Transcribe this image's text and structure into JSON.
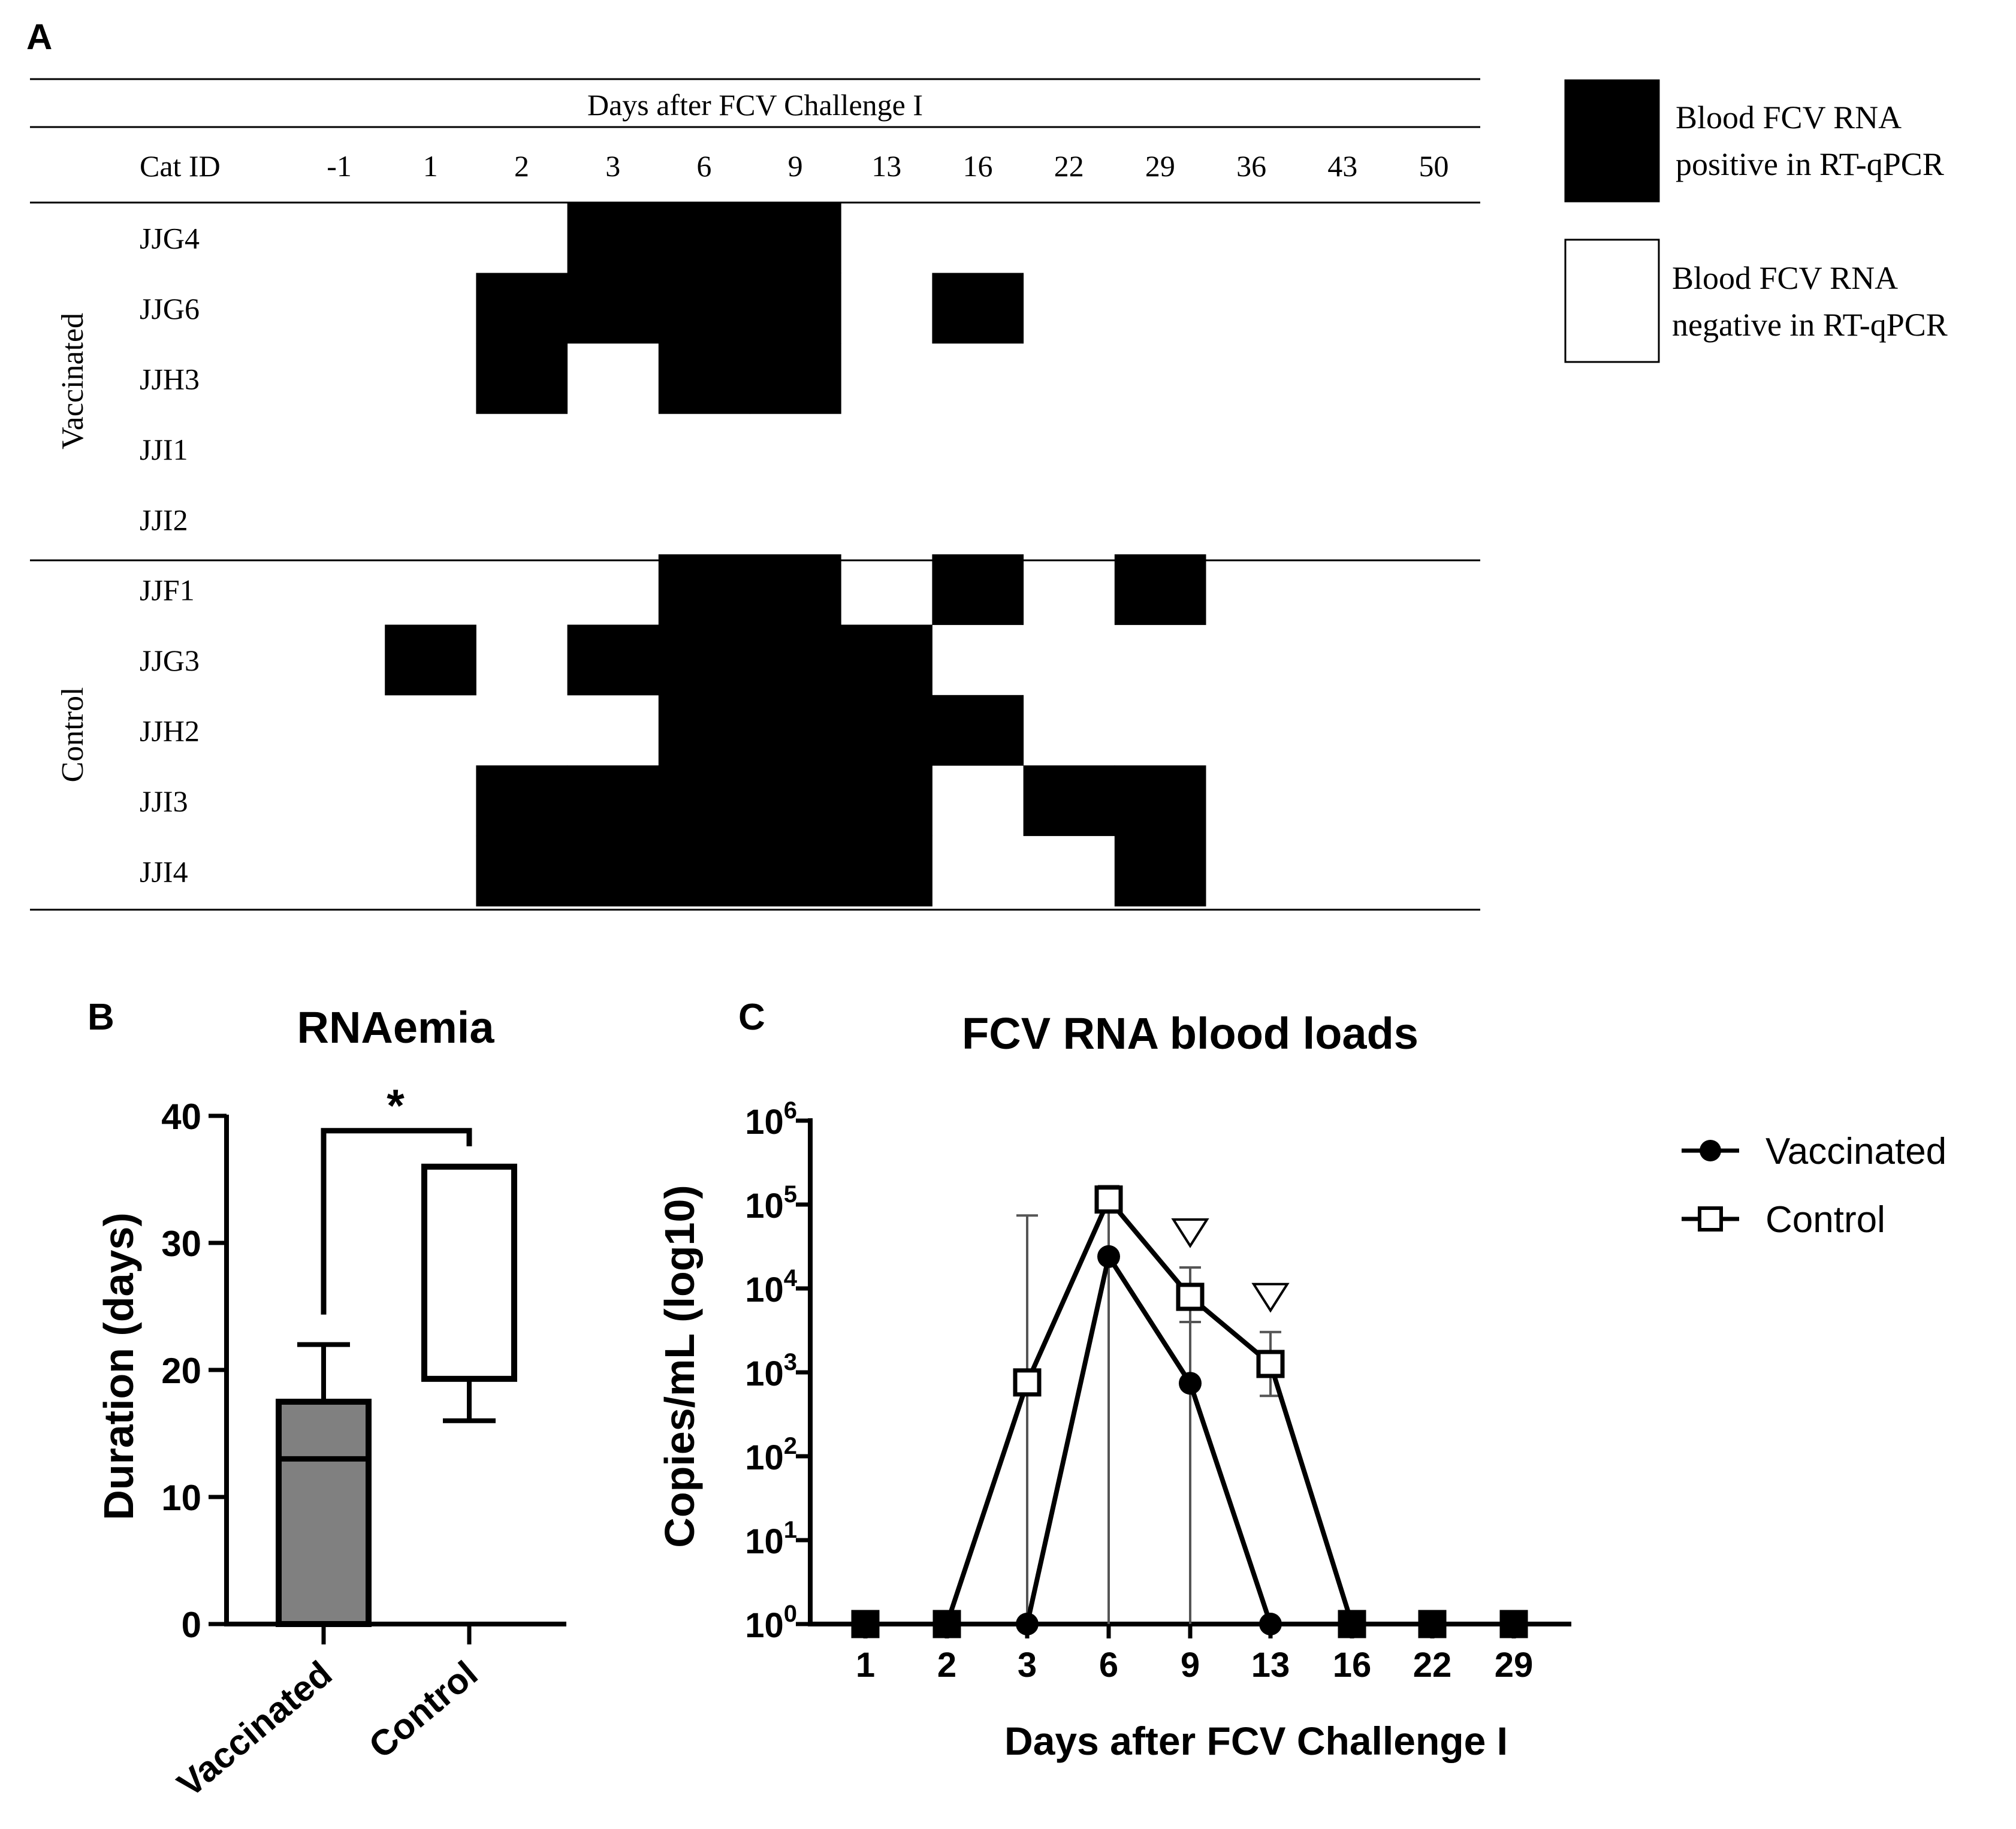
{
  "panels": {
    "a": "A",
    "b": "B",
    "c": "C"
  },
  "colors": {
    "positive": "#000000",
    "negative": "#ffffff",
    "box_vaccinated": "#808080",
    "box_control": "#ffffff"
  },
  "chart_data": [
    {
      "type": "table",
      "panel": "A",
      "header_title": "Days after FCV Challenge I",
      "id_header": "Cat ID",
      "days": [
        "-1",
        "1",
        "2",
        "3",
        "6",
        "9",
        "13",
        "16",
        "22",
        "29",
        "36",
        "43",
        "50"
      ],
      "groups": [
        {
          "name": "Vaccinated",
          "cats": [
            {
              "id": "JJG4",
              "positive": [
                0,
                0,
                0,
                1,
                1,
                1,
                0,
                0,
                0,
                0,
                0,
                0,
                0
              ]
            },
            {
              "id": "JJG6",
              "positive": [
                0,
                0,
                1,
                1,
                1,
                1,
                0,
                1,
                0,
                0,
                0,
                0,
                0
              ]
            },
            {
              "id": "JJH3",
              "positive": [
                0,
                0,
                1,
                0,
                1,
                1,
                0,
                0,
                0,
                0,
                0,
                0,
                0
              ]
            },
            {
              "id": "JJI1",
              "positive": [
                0,
                0,
                0,
                0,
                0,
                0,
                0,
                0,
                0,
                0,
                0,
                0,
                0
              ]
            },
            {
              "id": "JJI2",
              "positive": [
                0,
                0,
                0,
                0,
                0,
                0,
                0,
                0,
                0,
                0,
                0,
                0,
                0
              ]
            }
          ]
        },
        {
          "name": "Control",
          "cats": [
            {
              "id": "JJF1",
              "positive": [
                0,
                0,
                0,
                0,
                1,
                1,
                0,
                1,
                0,
                1,
                0,
                0,
                0
              ]
            },
            {
              "id": "JJG3",
              "positive": [
                0,
                1,
                0,
                1,
                1,
                1,
                1,
                0,
                0,
                0,
                0,
                0,
                0
              ]
            },
            {
              "id": "JJH2",
              "positive": [
                0,
                0,
                0,
                0,
                1,
                1,
                1,
                1,
                0,
                0,
                0,
                0,
                0
              ]
            },
            {
              "id": "JJI3",
              "positive": [
                0,
                0,
                1,
                1,
                1,
                1,
                1,
                0,
                1,
                1,
                0,
                0,
                0
              ]
            },
            {
              "id": "JJI4",
              "positive": [
                0,
                0,
                1,
                1,
                1,
                1,
                1,
                0,
                0,
                1,
                0,
                0,
                0
              ]
            }
          ]
        }
      ],
      "legend": [
        {
          "line1": "Blood FCV RNA",
          "line2": "positive in RT-qPCR",
          "fill": "positive"
        },
        {
          "line1": "Blood FCV RNA",
          "line2": "negative in RT-qPCR",
          "fill": "negative"
        }
      ]
    },
    {
      "type": "box",
      "panel": "B",
      "title": "RNAemia",
      "ylabel": "Duration (days)",
      "ylim": [
        0,
        40
      ],
      "yticks": [
        0,
        10,
        20,
        30,
        40
      ],
      "categories": [
        "Vaccinated",
        "Control"
      ],
      "boxes": [
        {
          "name": "Vaccinated",
          "min": 0,
          "q1": 0,
          "median": 13,
          "q3": 17.5,
          "max": 22
        },
        {
          "name": "Control",
          "min": 16,
          "q1": 19.3,
          "median": 36,
          "q3": 36,
          "max": 36
        }
      ],
      "significance": "*"
    },
    {
      "type": "line",
      "panel": "C",
      "title": "FCV RNA blood loads",
      "xlabel": "Days after FCV Challenge I",
      "ylabel": "Copies/mL (log10)",
      "y_scale": "log10",
      "ylim_exponent": [
        0,
        6
      ],
      "ytick_base": "10",
      "ytick_exponents": [
        "0",
        "1",
        "2",
        "3",
        "4",
        "5",
        "6"
      ],
      "categories": [
        "1",
        "2",
        "3",
        "6",
        "9",
        "13",
        "16",
        "22",
        "29"
      ],
      "series": [
        {
          "name": "Vaccinated",
          "marker": "filled-circle",
          "log10_values": [
            0,
            0,
            0,
            4.38,
            2.87,
            0,
            0,
            0,
            0
          ],
          "error_upper": [
            null,
            null,
            null,
            5.22,
            3.6,
            null,
            null,
            null,
            null
          ]
        },
        {
          "name": "Control",
          "marker": "open-square",
          "log10_values": [
            0,
            0,
            2.88,
            5.06,
            3.9,
            3.1,
            0,
            0,
            0
          ],
          "error_upper": [
            null,
            null,
            4.87,
            5.2,
            4.25,
            3.48,
            null,
            null,
            null
          ],
          "error_lower": [
            null,
            null,
            null,
            null,
            null,
            2.72,
            null,
            null,
            null
          ]
        }
      ],
      "annotation_marker": "open-triangle-down",
      "annotations_at": [
        "9",
        "13"
      ]
    }
  ]
}
